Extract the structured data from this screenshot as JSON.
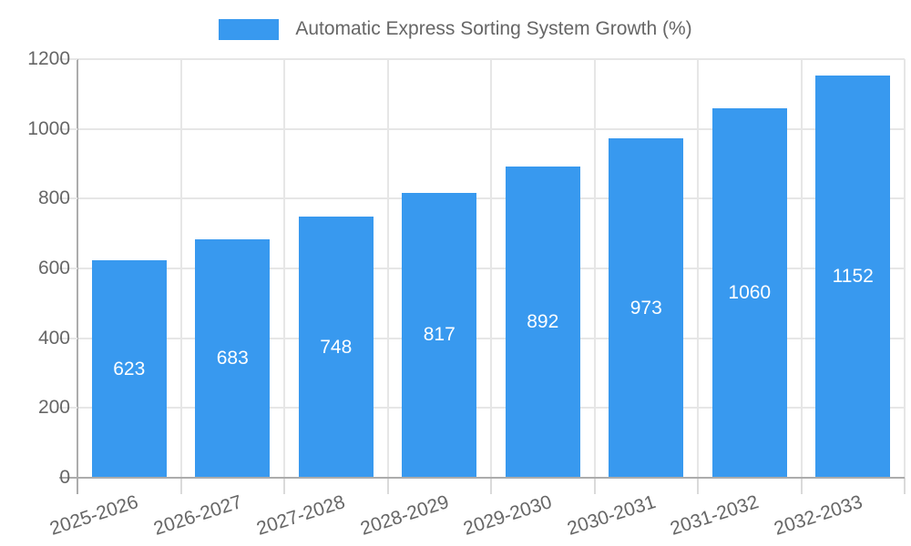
{
  "chart_data": {
    "type": "bar",
    "title": "Automatic Express Sorting System Growth (%)",
    "legend": {
      "label": "Automatic Express Sorting System Growth (%)",
      "position": "top"
    },
    "categories": [
      "2025-2026",
      "2026-2027",
      "2027-2028",
      "2028-2029",
      "2029-2030",
      "2030-2031",
      "2031-2032",
      "2032-2033"
    ],
    "values": [
      623,
      683,
      748,
      817,
      892,
      973,
      1060,
      1152
    ],
    "xlabel": "",
    "ylabel": "",
    "ylim": [
      0,
      1200
    ],
    "yticks": [
      0,
      200,
      400,
      600,
      800,
      1000,
      1200
    ],
    "grid": true,
    "value_labels": "centered-white-inside-bars",
    "colors": {
      "bar": "#3899EF",
      "bar_value_label": "#FFFFFF",
      "axis_text": "#666666",
      "grid_line": "#E6E6E6",
      "axis_line": "#ACACAC",
      "background": "#FFFFFF"
    }
  }
}
